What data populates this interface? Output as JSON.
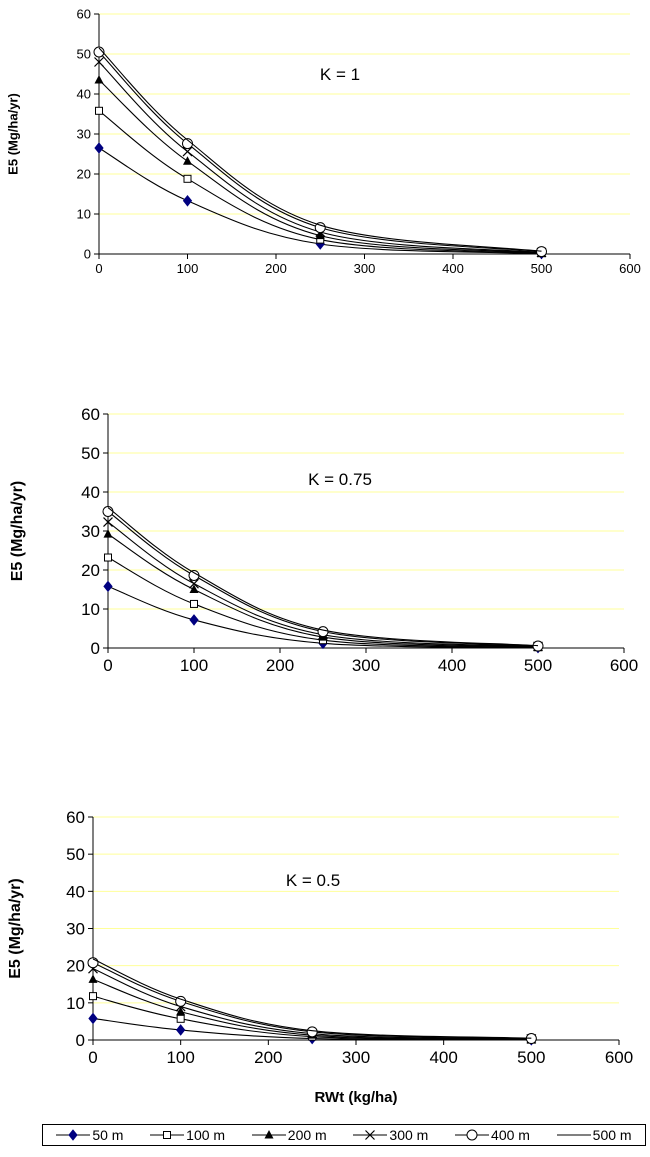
{
  "chart_data": [
    {
      "type": "line",
      "annotation": "K = 1",
      "xlabel": "",
      "ylabel": "E5 (Mg/ha/yr)",
      "xlim": [
        0,
        600
      ],
      "ylim": [
        0,
        60
      ],
      "xticks": [
        "0",
        "100",
        "200",
        "300",
        "400",
        "500",
        "600"
      ],
      "yticks": [
        "0",
        "10",
        "20",
        "30",
        "40",
        "50",
        "60"
      ],
      "x": [
        0,
        100,
        250,
        500
      ],
      "series": [
        {
          "name": "50 m",
          "marker": "diamond",
          "values": [
            26.5,
            13.3,
            2.5,
            0.1
          ]
        },
        {
          "name": "100 m",
          "marker": "square",
          "values": [
            35.8,
            18.8,
            3.6,
            0.2
          ]
        },
        {
          "name": "200 m",
          "marker": "triangle",
          "values": [
            43.5,
            23.2,
            4.6,
            0.3
          ]
        },
        {
          "name": "300 m",
          "marker": "x",
          "values": [
            48.0,
            25.6,
            5.5,
            0.4
          ]
        },
        {
          "name": "400 m",
          "marker": "circle",
          "values": [
            50.5,
            27.6,
            6.6,
            0.6
          ]
        },
        {
          "name": "500 m",
          "marker": "none",
          "values": [
            51.5,
            28.5,
            7.2,
            0.7
          ]
        }
      ]
    },
    {
      "type": "line",
      "annotation": "K = 0.75",
      "xlabel": "",
      "ylabel": "E5 (Mg/ha/yr)",
      "xlim": [
        0,
        600
      ],
      "ylim": [
        0,
        60
      ],
      "xticks": [
        "0",
        "100",
        "200",
        "300",
        "400",
        "500",
        "600"
      ],
      "yticks": [
        "0",
        "10",
        "20",
        "30",
        "40",
        "50",
        "60"
      ],
      "x": [
        0,
        100,
        250,
        500
      ],
      "series": [
        {
          "name": "50 m",
          "marker": "diamond",
          "values": [
            15.8,
            7.2,
            1.2,
            0.1
          ]
        },
        {
          "name": "100 m",
          "marker": "square",
          "values": [
            23.2,
            11.3,
            2.0,
            0.2
          ]
        },
        {
          "name": "200 m",
          "marker": "triangle",
          "values": [
            29.2,
            15.0,
            2.8,
            0.3
          ]
        },
        {
          "name": "300 m",
          "marker": "x",
          "values": [
            32.3,
            16.5,
            3.4,
            0.4
          ]
        },
        {
          "name": "400 m",
          "marker": "circle",
          "values": [
            35.0,
            18.6,
            4.2,
            0.5
          ]
        },
        {
          "name": "500 m",
          "marker": "none",
          "values": [
            36.0,
            19.3,
            4.6,
            0.6
          ]
        }
      ]
    },
    {
      "type": "line",
      "annotation": "K = 0.5",
      "xlabel": "RWt (kg/ha)",
      "ylabel": "E5 (Mg/ha/yr)",
      "xlim": [
        0,
        600
      ],
      "ylim": [
        0,
        60
      ],
      "xticks": [
        "0",
        "100",
        "200",
        "300",
        "400",
        "500",
        "600"
      ],
      "yticks": [
        "0",
        "10",
        "20",
        "30",
        "40",
        "50",
        "60"
      ],
      "x": [
        0,
        100,
        250,
        500
      ],
      "series": [
        {
          "name": "50 m",
          "marker": "diamond",
          "values": [
            5.8,
            2.7,
            0.4,
            0.05
          ]
        },
        {
          "name": "100 m",
          "marker": "square",
          "values": [
            11.8,
            5.7,
            0.9,
            0.1
          ]
        },
        {
          "name": "200 m",
          "marker": "triangle",
          "values": [
            16.3,
            7.6,
            1.3,
            0.2
          ]
        },
        {
          "name": "300 m",
          "marker": "x",
          "values": [
            19.2,
            9.0,
            1.7,
            0.3
          ]
        },
        {
          "name": "400 m",
          "marker": "circle",
          "values": [
            20.8,
            10.4,
            2.2,
            0.4
          ]
        },
        {
          "name": "500 m",
          "marker": "none",
          "values": [
            21.8,
            11.0,
            2.5,
            0.5
          ]
        }
      ]
    }
  ],
  "legend": {
    "placement": "bottom",
    "items": [
      "50 m",
      "100 m",
      "200 m",
      "300 m",
      "400 m",
      "500 m"
    ]
  },
  "colors": {
    "gridline": "#ffff99",
    "series_50m": "#000080",
    "series_other": "#000000"
  }
}
